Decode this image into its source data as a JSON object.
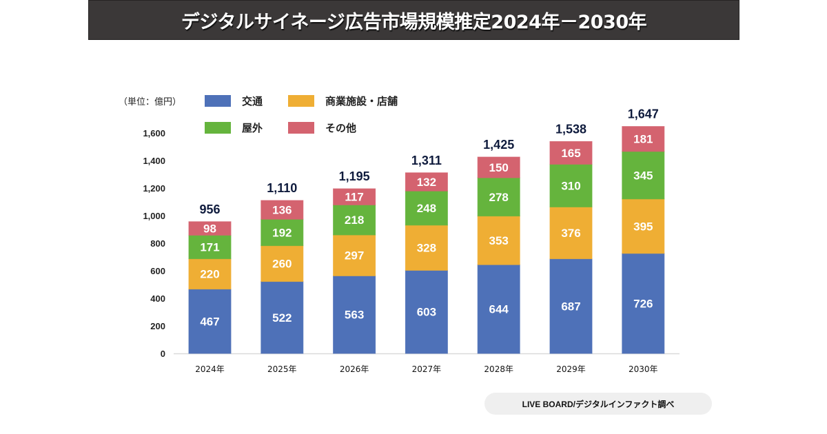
{
  "header": {
    "title": "デジタルサイネージ広告市場規模推定2024年－2030年"
  },
  "unit_label": "（単位：億円）",
  "source": "LIVE BOARD/デジタルインファクト調べ",
  "chart_data": {
    "type": "bar",
    "stacked": true,
    "title": "デジタルサイネージ広告市場規模推定2024年－2030年",
    "xlabel": "",
    "ylabel": "（単位：億円）",
    "ylim": [
      0,
      1600
    ],
    "yticks": [
      0,
      200,
      400,
      600,
      800,
      1000,
      1200,
      1400,
      1600
    ],
    "ytick_labels": [
      "0",
      "200",
      "400",
      "600",
      "800",
      "1,000",
      "1,200",
      "1,400",
      "1,600"
    ],
    "grid": false,
    "legend_position": "top",
    "categories": [
      "2024年",
      "2025年",
      "2026年",
      "2027年",
      "2028年",
      "2029年",
      "2030年"
    ],
    "series": [
      {
        "name": "交通",
        "color": "#4e71b8",
        "values": [
          467,
          522,
          563,
          603,
          644,
          687,
          726
        ]
      },
      {
        "name": "商業施設・店舗",
        "color": "#efae34",
        "values": [
          220,
          260,
          297,
          328,
          353,
          376,
          395
        ]
      },
      {
        "name": "屋外",
        "color": "#65b43d",
        "values": [
          171,
          192,
          218,
          248,
          278,
          310,
          345
        ]
      },
      {
        "name": "その他",
        "color": "#d4636f",
        "values": [
          98,
          136,
          117,
          132,
          150,
          165,
          181
        ]
      }
    ],
    "totals": [
      956,
      1110,
      1195,
      1311,
      1425,
      1538,
      1647
    ],
    "total_labels": [
      "956",
      "1,110",
      "1,195",
      "1,311",
      "1,425",
      "1,538",
      "1,647"
    ]
  }
}
